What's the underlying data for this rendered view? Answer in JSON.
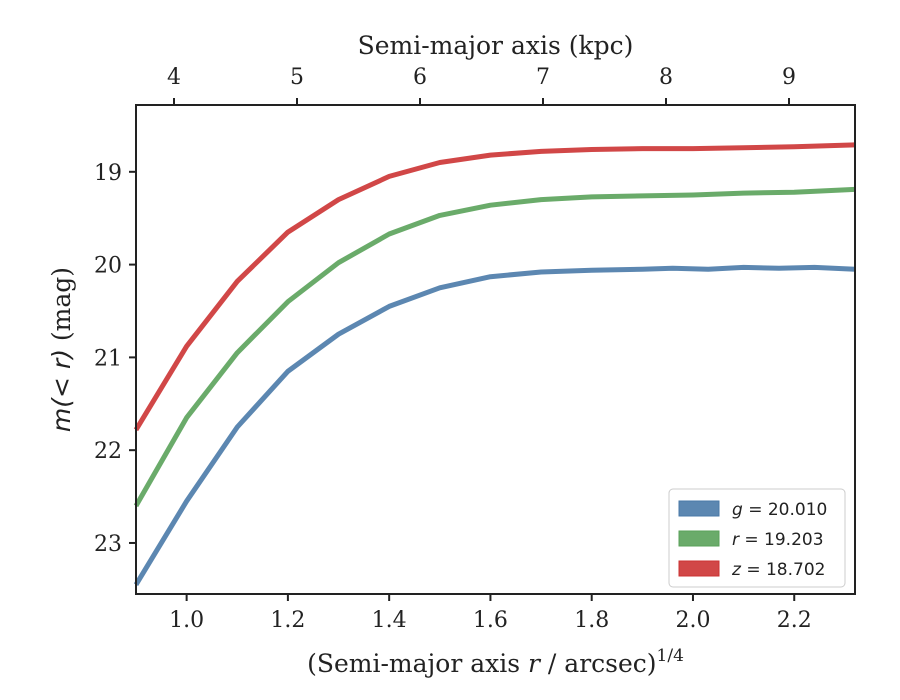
{
  "chart_data": {
    "type": "line",
    "xlabel": "(Semi-major axis r / arcsec)^1/4",
    "xlabel_parts": {
      "pre": "(Semi-major axis ",
      "var": "r",
      "post": " / arcsec)",
      "sup": "1/4"
    },
    "ylabel": "m(< r) (mag)",
    "ylabel_parts": {
      "math": "m(< r)",
      "unit": " (mag)"
    },
    "top_xlabel": "Semi-major axis (kpc)",
    "xlim": [
      0.9,
      2.32
    ],
    "ylim": [
      23.55,
      18.28
    ],
    "y_inverted": true,
    "xticks": [
      1.0,
      1.2,
      1.4,
      1.6,
      1.8,
      2.0,
      2.2
    ],
    "xtick_labels": [
      "1.0",
      "1.2",
      "1.4",
      "1.6",
      "1.8",
      "2.0",
      "2.2"
    ],
    "yticks": [
      19,
      20,
      21,
      22,
      23
    ],
    "ytick_labels": [
      "19",
      "20",
      "21",
      "22",
      "23"
    ],
    "top_xticks": [
      4,
      5,
      6,
      7,
      8,
      9
    ],
    "top_xtick_labels": [
      "4",
      "5",
      "6",
      "7",
      "8",
      "9"
    ],
    "legend_position": "lower-right",
    "series": [
      {
        "name": "g = 20.010",
        "band": "g",
        "value": "20.010",
        "color": "#4a7aa8",
        "x": [
          0.9,
          1.0,
          1.1,
          1.2,
          1.3,
          1.4,
          1.5,
          1.6,
          1.7,
          1.8,
          1.9,
          1.96,
          2.03,
          2.1,
          2.17,
          2.24,
          2.32
        ],
        "y": [
          23.45,
          22.55,
          21.75,
          21.15,
          20.75,
          20.45,
          20.25,
          20.13,
          20.08,
          20.06,
          20.05,
          20.04,
          20.05,
          20.03,
          20.04,
          20.03,
          20.05
        ]
      },
      {
        "name": "r = 19.203",
        "band": "r",
        "value": "19.203",
        "color": "#5aa25a",
        "x": [
          0.9,
          1.0,
          1.1,
          1.2,
          1.3,
          1.4,
          1.5,
          1.6,
          1.7,
          1.8,
          1.9,
          2.0,
          2.1,
          2.2,
          2.32
        ],
        "y": [
          22.6,
          21.65,
          20.95,
          20.4,
          19.98,
          19.67,
          19.47,
          19.36,
          19.3,
          19.27,
          19.26,
          19.25,
          19.23,
          19.22,
          19.19
        ]
      },
      {
        "name": "z = 18.702",
        "band": "z",
        "value": "18.702",
        "color": "#cc3333",
        "x": [
          0.9,
          1.0,
          1.1,
          1.2,
          1.3,
          1.4,
          1.5,
          1.6,
          1.7,
          1.8,
          1.9,
          2.0,
          2.1,
          2.2,
          2.32
        ],
        "y": [
          21.78,
          20.88,
          20.18,
          19.65,
          19.3,
          19.05,
          18.9,
          18.82,
          18.78,
          18.76,
          18.75,
          18.75,
          18.74,
          18.73,
          18.71
        ]
      }
    ]
  }
}
